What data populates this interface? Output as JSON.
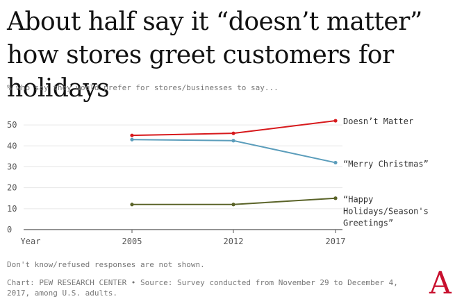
{
  "title": "About half say it “doesn’t matter” how stores greet customers for holidays",
  "subtitle": "% who say they would prefer for stores/businesses to say...",
  "note": "Don't know/refused responses are not shown.",
  "source": "Chart: PEW RESEARCH CENTER • Source: Survey conducted from November 29 to December 4, 2017, among U.S. adults.",
  "logo": "A",
  "chart_data": {
    "type": "line",
    "x": [
      2005,
      2012,
      2017
    ],
    "x_tick_labels": [
      "Year",
      "2005",
      "2012",
      "2017"
    ],
    "ylim": [
      0,
      55
    ],
    "y_ticks": [
      0,
      10,
      20,
      30,
      40,
      50
    ],
    "grid": true,
    "legend": "direct labels at right end of lines",
    "series": [
      {
        "name": "Doesn’t Matter",
        "values": [
          45,
          46,
          52
        ],
        "color": "#d7191c",
        "label_lines": [
          "Doesn’t Matter"
        ]
      },
      {
        "name": "“Merry Christmas”",
        "values": [
          43,
          42.5,
          32
        ],
        "color": "#5b9dbb",
        "label_lines": [
          "“Merry Christmas”"
        ]
      },
      {
        "name": "“Happy Holidays/Season's Greetings”",
        "values": [
          12,
          12,
          15
        ],
        "color": "#5a6328",
        "label_lines": [
          "“Happy",
          "Holidays/Season's",
          "Greetings”"
        ]
      }
    ]
  }
}
